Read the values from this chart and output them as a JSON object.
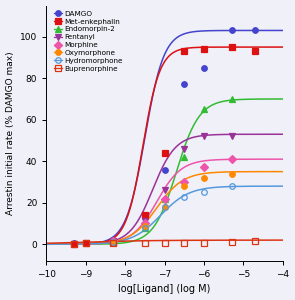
{
  "title": "",
  "xlabel": "log[Ligand] (log M)",
  "ylabel": "Arrestin initial rate (% DAMGO max)",
  "xlim": [
    -10,
    -4
  ],
  "ylim": [
    -8,
    115
  ],
  "xticks": [
    -10,
    -9,
    -8,
    -7,
    -6,
    -5,
    -4
  ],
  "yticks": [
    0,
    20,
    40,
    60,
    80,
    100
  ],
  "background": "#f0f0f8",
  "ligands": [
    {
      "name": "DAMGO",
      "color": "#4444cc",
      "marker": "o",
      "filled": true,
      "emax": 103,
      "ec50_log": -7.5,
      "hill": 1.8,
      "data_x": [
        -9.3,
        -9.0,
        -8.3,
        -7.5,
        -7.0,
        -6.5,
        -6.0,
        -5.3,
        -4.7
      ],
      "data_y": [
        0.5,
        0.8,
        1.5,
        13,
        36,
        77,
        85,
        103,
        103
      ]
    },
    {
      "name": "Met-enkephalin",
      "color": "#dd1111",
      "marker": "s",
      "filled": true,
      "emax": 95,
      "ec50_log": -7.55,
      "hill": 2.0,
      "data_x": [
        -9.3,
        -9.0,
        -8.3,
        -7.5,
        -7.0,
        -6.5,
        -6.0,
        -5.3,
        -4.7
      ],
      "data_y": [
        0.3,
        0.5,
        1.0,
        14,
        44,
        93,
        94,
        95,
        93
      ]
    },
    {
      "name": "Endomorpin-2",
      "color": "#33bb33",
      "marker": "^",
      "filled": true,
      "emax": 70,
      "ec50_log": -6.7,
      "hill": 1.5,
      "data_x": [
        -8.3,
        -7.5,
        -7.0,
        -6.5,
        -6.0,
        -5.3
      ],
      "data_y": [
        1.5,
        8,
        22,
        42,
        65,
        70
      ]
    },
    {
      "name": "Fentanyl",
      "color": "#993399",
      "marker": "v",
      "filled": true,
      "emax": 53,
      "ec50_log": -7.3,
      "hill": 1.5,
      "data_x": [
        -8.3,
        -7.5,
        -7.0,
        -6.5,
        -6.0,
        -5.3
      ],
      "data_y": [
        1.5,
        11,
        26,
        46,
        52,
        52
      ]
    },
    {
      "name": "Morphine",
      "color": "#ee55aa",
      "marker": "D",
      "filled": true,
      "emax": 41,
      "ec50_log": -7.2,
      "hill": 1.4,
      "data_x": [
        -8.3,
        -7.5,
        -7.0,
        -6.5,
        -6.0,
        -5.3
      ],
      "data_y": [
        1.5,
        10,
        22,
        30,
        37,
        41
      ]
    },
    {
      "name": "Oxymorphone",
      "color": "#ff8800",
      "marker": "o",
      "filled": true,
      "emax": 35,
      "ec50_log": -7.2,
      "hill": 1.3,
      "data_x": [
        -8.3,
        -7.5,
        -7.0,
        -6.5,
        -6.0,
        -5.3
      ],
      "data_y": [
        1.0,
        9,
        18,
        28,
        32,
        34
      ]
    },
    {
      "name": "Hydromorphone",
      "color": "#5599dd",
      "marker": "o",
      "filled": false,
      "emax": 28,
      "ec50_log": -7.1,
      "hill": 1.2,
      "data_x": [
        -8.3,
        -7.5,
        -7.0,
        -6.5,
        -6.0,
        -5.3
      ],
      "data_y": [
        1.0,
        8,
        18,
        23,
        25,
        28
      ]
    },
    {
      "name": "Buprenorphine",
      "color": "#dd3311",
      "marker": "s",
      "filled": false,
      "emax": 2,
      "ec50_log": -9.0,
      "hill": 0.5,
      "data_x": [
        -9.3,
        -9.0,
        -8.3,
        -7.5,
        -7.0,
        -6.5,
        -6.0,
        -5.3,
        -4.7
      ],
      "data_y": [
        0.3,
        0.5,
        0.5,
        0.5,
        0.5,
        0.7,
        0.8,
        1.2,
        1.8
      ]
    }
  ]
}
